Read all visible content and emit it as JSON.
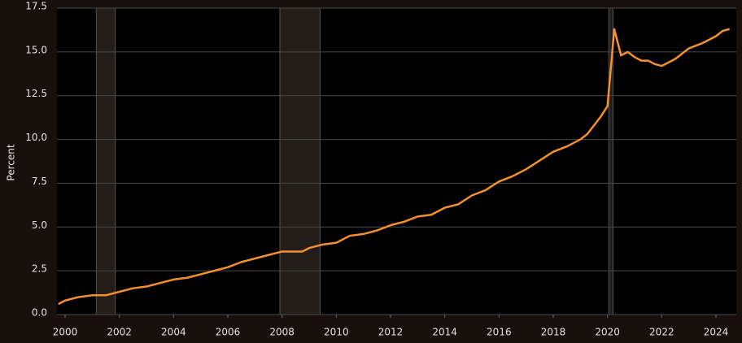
{
  "chart_data": {
    "type": "line",
    "y_label": "Percent",
    "x": [
      1999.75,
      2000.0,
      2000.5,
      2001.0,
      2001.5,
      2002.0,
      2002.5,
      2003.0,
      2003.5,
      2004.0,
      2004.5,
      2005.0,
      2005.5,
      2006.0,
      2006.5,
      2007.0,
      2007.5,
      2008.0,
      2008.5,
      2008.75,
      2009.0,
      2009.5,
      2010.0,
      2010.5,
      2011.0,
      2011.5,
      2012.0,
      2012.5,
      2013.0,
      2013.5,
      2014.0,
      2014.5,
      2015.0,
      2015.5,
      2016.0,
      2016.5,
      2017.0,
      2017.5,
      2018.0,
      2018.5,
      2019.0,
      2019.25,
      2019.5,
      2019.75,
      2020.0,
      2020.25,
      2020.5,
      2020.75,
      2021.0,
      2021.25,
      2021.5,
      2021.75,
      2022.0,
      2022.5,
      2023.0,
      2023.5,
      2024.0,
      2024.25,
      2024.5
    ],
    "series": [
      {
        "color": "#f5902e",
        "values": [
          0.6,
          0.8,
          1.0,
          1.1,
          1.1,
          1.3,
          1.5,
          1.6,
          1.8,
          2.0,
          2.1,
          2.3,
          2.5,
          2.7,
          3.0,
          3.2,
          3.4,
          3.6,
          3.6,
          3.6,
          3.8,
          4.0,
          4.1,
          4.5,
          4.6,
          4.8,
          5.1,
          5.3,
          5.6,
          5.7,
          6.1,
          6.3,
          6.8,
          7.1,
          7.6,
          7.9,
          8.3,
          8.8,
          9.3,
          9.6,
          10.0,
          10.3,
          10.8,
          11.3,
          11.9,
          16.3,
          14.8,
          15.0,
          14.7,
          14.5,
          14.5,
          14.3,
          14.2,
          14.6,
          15.2,
          15.5,
          15.9,
          16.2,
          16.3
        ]
      }
    ],
    "shaded_x": [
      [
        2001.15,
        2001.85
      ],
      [
        2007.92,
        2009.4
      ],
      [
        2020.05,
        2020.2
      ]
    ],
    "shade_color": "#221d19",
    "xlim": [
      1999.7,
      2024.75
    ],
    "xticks": [
      2000,
      2002,
      2004,
      2006,
      2008,
      2010,
      2012,
      2014,
      2016,
      2018,
      2020,
      2022,
      2024
    ],
    "ylim": [
      0,
      17.5
    ],
    "yticks": [
      {
        "value": 0,
        "label": "0.0"
      },
      {
        "value": 2.5,
        "label": "2.5"
      },
      {
        "value": 5,
        "label": "5.0"
      },
      {
        "value": 7.5,
        "label": "7.5"
      },
      {
        "value": 10,
        "label": "10.0"
      },
      {
        "value": 12.5,
        "label": "12.5"
      },
      {
        "value": 15,
        "label": "15.0"
      },
      {
        "value": 17.5,
        "label": "17.5"
      }
    ],
    "grid": true
  }
}
